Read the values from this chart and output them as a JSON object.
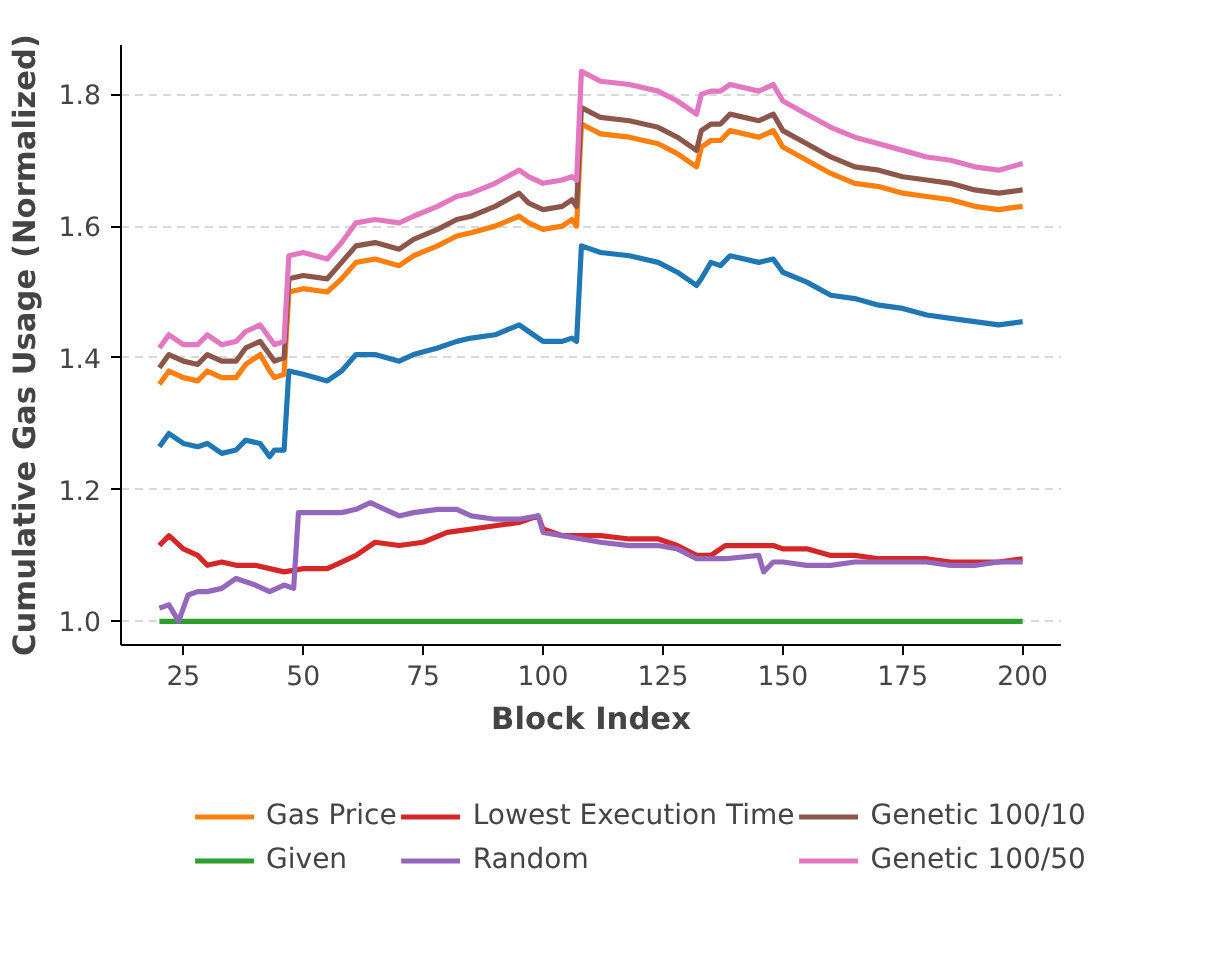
{
  "chart_data": {
    "type": "line",
    "xlabel": "Block Index",
    "ylabel": "Cumulative Gas Usage (Normalized)",
    "xlim": [
      12,
      208
    ],
    "xticks": [
      25,
      50,
      75,
      100,
      125,
      150,
      175,
      200
    ],
    "ylim": [
      0.964,
      1.875
    ],
    "yticks": [
      {
        "value": 1.0,
        "label": "1.0"
      },
      {
        "value": 1.2,
        "label": "1.2"
      },
      {
        "value": 1.4,
        "label": "1.4"
      },
      {
        "value": 1.6,
        "label": "1.6"
      },
      {
        "value": 1.8,
        "label": "1.8"
      }
    ],
    "grid": "y",
    "legend": "bottom",
    "line_style": "solid",
    "marker": "none",
    "series": [
      {
        "color": "#1f77b4",
        "x": [
          20,
          22,
          25,
          28,
          30,
          33,
          36,
          38,
          41,
          43,
          44,
          46,
          47,
          50,
          55,
          58,
          61,
          65,
          70,
          73,
          78,
          82,
          85,
          90,
          95,
          97,
          100,
          104,
          106,
          107,
          108,
          112,
          118,
          124,
          128,
          132,
          133,
          135,
          137,
          139,
          145,
          148,
          150,
          155,
          160,
          165,
          170,
          175,
          180,
          185,
          190,
          195,
          200
        ],
        "values": [
          1.265,
          1.285,
          1.27,
          1.265,
          1.27,
          1.255,
          1.26,
          1.275,
          1.27,
          1.25,
          1.26,
          1.26,
          1.38,
          1.375,
          1.365,
          1.38,
          1.405,
          1.405,
          1.395,
          1.405,
          1.415,
          1.425,
          1.43,
          1.435,
          1.45,
          1.44,
          1.425,
          1.425,
          1.43,
          1.425,
          1.57,
          1.56,
          1.555,
          1.545,
          1.53,
          1.51,
          1.52,
          1.545,
          1.54,
          1.555,
          1.545,
          1.55,
          1.53,
          1.515,
          1.495,
          1.49,
          1.48,
          1.475,
          1.465,
          1.46,
          1.455,
          1.45,
          1.455
        ]
      },
      {
        "name": "Gas Price",
        "color": "#ff7f0e",
        "x": [
          20,
          22,
          25,
          28,
          30,
          33,
          36,
          38,
          41,
          43,
          44,
          46,
          47,
          50,
          55,
          58,
          61,
          65,
          70,
          73,
          78,
          82,
          85,
          90,
          95,
          97,
          100,
          104,
          106,
          107,
          108,
          112,
          118,
          124,
          128,
          132,
          133,
          135,
          137,
          139,
          145,
          148,
          150,
          155,
          160,
          165,
          170,
          175,
          180,
          185,
          190,
          195,
          200
        ],
        "values": [
          1.36,
          1.38,
          1.37,
          1.365,
          1.38,
          1.37,
          1.37,
          1.39,
          1.405,
          1.38,
          1.37,
          1.375,
          1.5,
          1.505,
          1.5,
          1.52,
          1.545,
          1.55,
          1.54,
          1.555,
          1.57,
          1.585,
          1.59,
          1.6,
          1.615,
          1.605,
          1.595,
          1.6,
          1.61,
          1.6,
          1.755,
          1.74,
          1.735,
          1.725,
          1.71,
          1.69,
          1.72,
          1.73,
          1.73,
          1.745,
          1.735,
          1.745,
          1.72,
          1.7,
          1.68,
          1.665,
          1.66,
          1.65,
          1.645,
          1.64,
          1.63,
          1.625,
          1.63
        ]
      },
      {
        "name": "Given",
        "color": "#2ca02c",
        "x": [
          20,
          200
        ],
        "values": [
          1.0,
          1.0
        ]
      },
      {
        "name": "Lowest Execution Time",
        "color": "#d62728",
        "x": [
          20,
          22,
          25,
          28,
          30,
          33,
          36,
          40,
          43,
          46,
          50,
          55,
          58,
          61,
          65,
          70,
          75,
          80,
          85,
          90,
          95,
          99,
          100,
          104,
          108,
          112,
          118,
          124,
          128,
          132,
          135,
          138,
          145,
          148,
          150,
          155,
          160,
          165,
          170,
          175,
          180,
          185,
          190,
          195,
          200
        ],
        "values": [
          1.115,
          1.13,
          1.11,
          1.1,
          1.085,
          1.09,
          1.085,
          1.085,
          1.08,
          1.075,
          1.08,
          1.08,
          1.09,
          1.1,
          1.12,
          1.115,
          1.12,
          1.135,
          1.14,
          1.145,
          1.15,
          1.16,
          1.14,
          1.13,
          1.13,
          1.13,
          1.125,
          1.125,
          1.115,
          1.1,
          1.1,
          1.115,
          1.115,
          1.115,
          1.11,
          1.11,
          1.1,
          1.1,
          1.095,
          1.095,
          1.095,
          1.09,
          1.09,
          1.09,
          1.095
        ]
      },
      {
        "name": "Random",
        "color": "#9467bd",
        "x": [
          20,
          22,
          24,
          26,
          28,
          30,
          33,
          36,
          40,
          43,
          46,
          48,
          49,
          55,
          58,
          61,
          64,
          67,
          70,
          73,
          78,
          82,
          85,
          90,
          95,
          99,
          100,
          104,
          108,
          112,
          118,
          124,
          128,
          132,
          135,
          138,
          145,
          146,
          148,
          150,
          155,
          160,
          165,
          170,
          175,
          180,
          185,
          190,
          195,
          200
        ],
        "values": [
          1.02,
          1.025,
          1.0,
          1.04,
          1.045,
          1.045,
          1.05,
          1.065,
          1.055,
          1.045,
          1.055,
          1.05,
          1.165,
          1.165,
          1.165,
          1.17,
          1.18,
          1.17,
          1.16,
          1.165,
          1.17,
          1.17,
          1.16,
          1.155,
          1.155,
          1.16,
          1.135,
          1.13,
          1.125,
          1.12,
          1.115,
          1.115,
          1.11,
          1.095,
          1.095,
          1.095,
          1.1,
          1.075,
          1.09,
          1.09,
          1.085,
          1.085,
          1.09,
          1.09,
          1.09,
          1.09,
          1.085,
          1.085,
          1.09,
          1.09
        ]
      },
      {
        "name": "Genetic 100/10",
        "color": "#8c564b",
        "x": [
          20,
          22,
          25,
          28,
          30,
          33,
          36,
          38,
          41,
          43,
          44,
          46,
          47,
          50,
          55,
          58,
          61,
          65,
          70,
          73,
          78,
          82,
          85,
          90,
          95,
          97,
          100,
          104,
          106,
          107,
          108,
          112,
          118,
          124,
          128,
          132,
          133,
          135,
          137,
          139,
          145,
          148,
          150,
          155,
          160,
          165,
          170,
          175,
          180,
          185,
          190,
          195,
          200
        ],
        "values": [
          1.385,
          1.405,
          1.395,
          1.39,
          1.405,
          1.395,
          1.395,
          1.415,
          1.425,
          1.405,
          1.395,
          1.4,
          1.52,
          1.525,
          1.52,
          1.545,
          1.57,
          1.575,
          1.565,
          1.58,
          1.595,
          1.61,
          1.615,
          1.63,
          1.65,
          1.635,
          1.625,
          1.63,
          1.64,
          1.63,
          1.78,
          1.765,
          1.76,
          1.75,
          1.735,
          1.715,
          1.745,
          1.755,
          1.755,
          1.77,
          1.76,
          1.77,
          1.745,
          1.725,
          1.705,
          1.69,
          1.685,
          1.675,
          1.67,
          1.665,
          1.655,
          1.65,
          1.655
        ]
      },
      {
        "name": "Genetic 100/50",
        "color": "#e377c2",
        "x": [
          20,
          22,
          25,
          28,
          30,
          33,
          36,
          38,
          41,
          43,
          44,
          46,
          47,
          50,
          55,
          58,
          61,
          65,
          70,
          73,
          78,
          82,
          85,
          90,
          95,
          97,
          100,
          104,
          106,
          107,
          108,
          112,
          118,
          124,
          128,
          132,
          133,
          135,
          137,
          139,
          145,
          148,
          150,
          155,
          160,
          165,
          170,
          175,
          180,
          185,
          190,
          195,
          200
        ],
        "values": [
          1.415,
          1.435,
          1.42,
          1.42,
          1.435,
          1.42,
          1.425,
          1.44,
          1.45,
          1.43,
          1.42,
          1.425,
          1.555,
          1.56,
          1.55,
          1.575,
          1.605,
          1.61,
          1.605,
          1.615,
          1.63,
          1.645,
          1.65,
          1.665,
          1.685,
          1.675,
          1.665,
          1.67,
          1.675,
          1.67,
          1.835,
          1.82,
          1.815,
          1.805,
          1.79,
          1.77,
          1.8,
          1.805,
          1.805,
          1.815,
          1.805,
          1.815,
          1.79,
          1.77,
          1.75,
          1.735,
          1.725,
          1.715,
          1.705,
          1.7,
          1.69,
          1.685,
          1.695
        ]
      }
    ]
  }
}
